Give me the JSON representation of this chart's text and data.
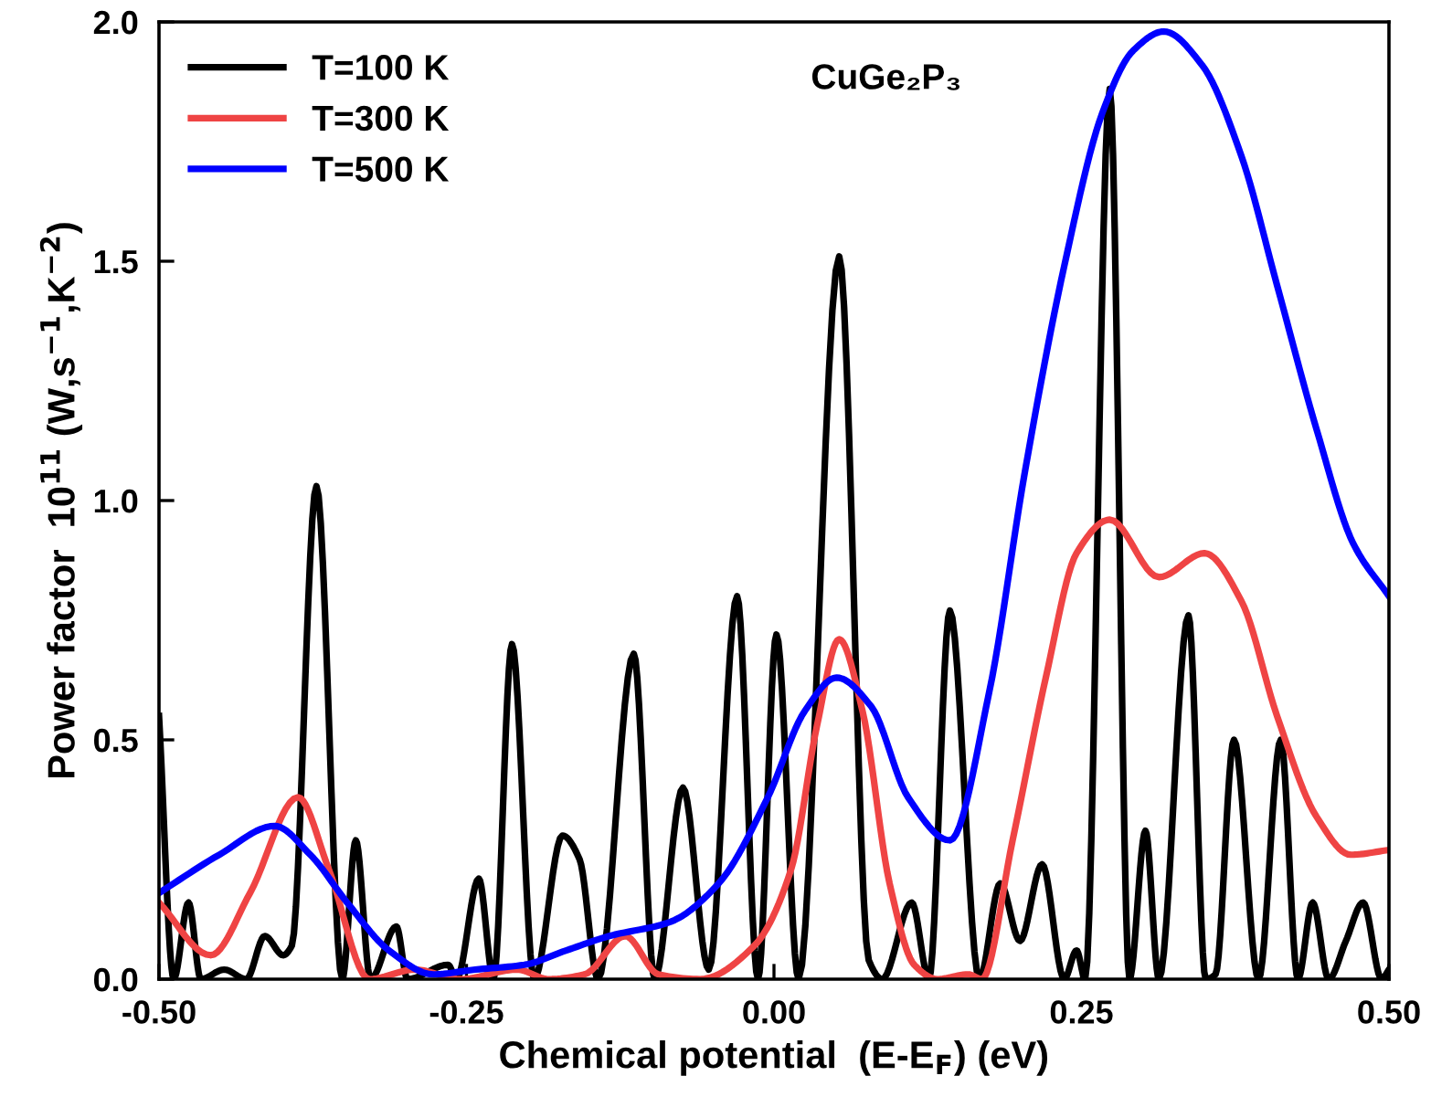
{
  "chart_data": {
    "type": "line",
    "xlabel": "Chemical potential  (E-E$_{F}$) (eV)",
    "ylabel": "Power factor  10$^{11}$ (W,s$^{−1}$,K$^{−2}$)",
    "annotations": [
      "CuGe₂P₃"
    ],
    "xlim": [
      -0.5,
      0.5
    ],
    "ylim": [
      0,
      2.0
    ],
    "xticks": [
      {
        "value": -0.5,
        "label": "-0.50"
      },
      {
        "value": -0.25,
        "label": "-0.25"
      },
      {
        "value": 0,
        "label": "0.00"
      },
      {
        "value": 0.25,
        "label": "0.25"
      },
      {
        "value": 0.5,
        "label": "0.50"
      }
    ],
    "yticks": [
      {
        "value": 0,
        "label": "0.0"
      },
      {
        "value": 0.5,
        "label": "0.5"
      },
      {
        "value": 1.0,
        "label": "1.0"
      },
      {
        "value": 1.5,
        "label": "1.5"
      },
      {
        "value": 2.0,
        "label": "2.0"
      }
    ],
    "grid": false,
    "legend": "top left",
    "marker": "none",
    "line_style": "solid",
    "series": [
      {
        "name": "T=100 K",
        "color": "#000000",
        "x": [
          -0.5,
          -0.488,
          -0.476,
          -0.466,
          -0.447,
          -0.429,
          -0.414,
          -0.399,
          -0.392,
          -0.372,
          -0.351,
          -0.34,
          -0.328,
          -0.307,
          -0.298,
          -0.265,
          -0.258,
          -0.24,
          -0.228,
          -0.213,
          -0.195,
          -0.172,
          -0.158,
          -0.143,
          -0.114,
          -0.097,
          -0.074,
          -0.053,
          -0.03,
          -0.013,
          0.002,
          0.02,
          0.053,
          0.077,
          0.088,
          0.112,
          0.126,
          0.143,
          0.167,
          0.184,
          0.2,
          0.218,
          0.236,
          0.246,
          0.253,
          0.273,
          0.289,
          0.302,
          0.313,
          0.337,
          0.351,
          0.359,
          0.374,
          0.394,
          0.412,
          0.426,
          0.438,
          0.451,
          0.465,
          0.479,
          0.494,
          0.5
        ],
        "values": [
          0.55,
          0,
          0.16,
          0,
          0.02,
          0,
          0.09,
          0.05,
          0.07,
          1.03,
          0,
          0.29,
          0,
          0.11,
          0,
          0.03,
          0,
          0.21,
          0,
          0.7,
          0,
          0.3,
          0.25,
          0,
          0.68,
          0,
          0.4,
          0.02,
          0.8,
          0,
          0.72,
          0,
          1.51,
          0.04,
          0,
          0.16,
          0,
          0.77,
          0,
          0.2,
          0.08,
          0.24,
          0,
          0.06,
          0,
          1.86,
          0,
          0.31,
          0,
          0.76,
          0,
          0.01,
          0.5,
          0,
          0.5,
          0,
          0.16,
          0,
          0.08,
          0.16,
          0,
          0.02
        ]
      },
      {
        "name": "T=300 K",
        "color": "#ef4444",
        "x": [
          -0.5,
          -0.458,
          -0.426,
          -0.387,
          -0.362,
          -0.329,
          -0.292,
          -0.255,
          -0.209,
          -0.183,
          -0.154,
          -0.121,
          -0.094,
          -0.06,
          -0.016,
          0.014,
          0.035,
          0.053,
          0.072,
          0.094,
          0.114,
          0.133,
          0.158,
          0.169,
          0.194,
          0.221,
          0.246,
          0.273,
          0.313,
          0.35,
          0.38,
          0.409,
          0.441,
          0.469,
          0.5
        ],
        "values": [
          0.16,
          0.05,
          0.18,
          0.38,
          0.23,
          0,
          0.02,
          0,
          0.02,
          0,
          0.01,
          0.09,
          0.01,
          0,
          0.07,
          0.23,
          0.53,
          0.71,
          0.56,
          0.2,
          0.03,
          0,
          0.01,
          0,
          0.29,
          0.63,
          0.89,
          0.96,
          0.84,
          0.89,
          0.79,
          0.55,
          0.34,
          0.26,
          0.27
        ]
      },
      {
        "name": "T=500 K",
        "color": "#0000ff",
        "x": [
          -0.5,
          -0.451,
          -0.406,
          -0.377,
          -0.347,
          -0.313,
          -0.277,
          -0.243,
          -0.203,
          -0.169,
          -0.134,
          -0.084,
          -0.045,
          -0.005,
          0.025,
          0.051,
          0.079,
          0.109,
          0.143,
          0.175,
          0.204,
          0.236,
          0.267,
          0.292,
          0.317,
          0.348,
          0.38,
          0.409,
          0.441,
          0.471,
          0.5
        ],
        "values": [
          0.18,
          0.26,
          0.32,
          0.26,
          0.16,
          0.06,
          0.01,
          0.02,
          0.03,
          0.06,
          0.09,
          0.12,
          0.2,
          0.38,
          0.56,
          0.63,
          0.57,
          0.38,
          0.29,
          0.6,
          1.06,
          1.49,
          1.81,
          1.94,
          1.98,
          1.91,
          1.72,
          1.45,
          1.15,
          0.91,
          0.8
        ]
      }
    ]
  }
}
